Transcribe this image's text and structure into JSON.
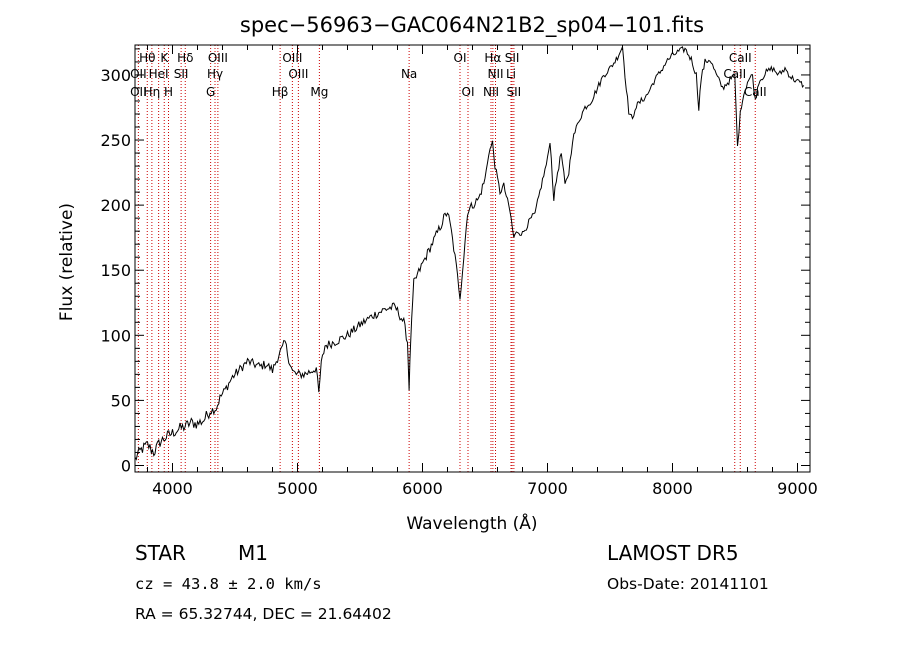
{
  "chart_data": {
    "type": "line",
    "title": "spec−56963−GAC064N21B2_sp04−101.fits",
    "xlabel": "Wavelength (Å)",
    "ylabel": "Flux (relative)",
    "xlim": [
      3700,
      9100
    ],
    "ylim": [
      -5,
      323
    ],
    "xticks": [
      4000,
      5000,
      6000,
      7000,
      8000,
      9000
    ],
    "yticks": [
      0,
      50,
      100,
      150,
      200,
      250,
      300
    ],
    "grid": false,
    "line_color": "#000000",
    "marker_color": "#cc0000",
    "spectral_lines": [
      {
        "label": "Hθ",
        "wl": 3798,
        "row": 1
      },
      {
        "label": "K",
        "wl": 3934,
        "row": 1
      },
      {
        "label": "Hδ",
        "wl": 4102,
        "row": 1
      },
      {
        "label": "OIII",
        "wl": 4363,
        "row": 1
      },
      {
        "label": "OIII",
        "wl": 4959,
        "row": 1
      },
      {
        "label": "OI",
        "wl": 6300,
        "row": 1
      },
      {
        "label": "Hα",
        "wl": 6563,
        "row": 1
      },
      {
        "label": "SII",
        "wl": 6717,
        "row": 1
      },
      {
        "label": "CaII",
        "wl": 8542,
        "row": 1
      },
      {
        "label": "OII",
        "wl": 3727,
        "row": 2
      },
      {
        "label": "HeI",
        "wl": 3889,
        "row": 2
      },
      {
        "label": "SII",
        "wl": 4069,
        "row": 2
      },
      {
        "label": "Hγ",
        "wl": 4340,
        "row": 2
      },
      {
        "label": "OIII",
        "wl": 5007,
        "row": 2
      },
      {
        "label": "Na",
        "wl": 5893,
        "row": 2
      },
      {
        "label": "NII",
        "wl": 6584,
        "row": 2
      },
      {
        "label": "Li",
        "wl": 6708,
        "row": 2
      },
      {
        "label": "CaII",
        "wl": 8498,
        "row": 2
      },
      {
        "label": "OII",
        "wl": 3727,
        "row": 3
      },
      {
        "label": "Hη",
        "wl": 3835,
        "row": 3
      },
      {
        "label": "H",
        "wl": 3968,
        "row": 3
      },
      {
        "label": "G",
        "wl": 4305,
        "row": 3
      },
      {
        "label": "Hβ",
        "wl": 4861,
        "row": 3
      },
      {
        "label": "Mg",
        "wl": 5175,
        "row": 3
      },
      {
        "label": "OI",
        "wl": 6364,
        "row": 3
      },
      {
        "label": "NII",
        "wl": 6548,
        "row": 3
      },
      {
        "label": "SII",
        "wl": 6731,
        "row": 3
      },
      {
        "label": "CaII",
        "wl": 8662,
        "row": 3
      }
    ],
    "spectrum": {
      "x": [
        3700,
        3750,
        3800,
        3850,
        3900,
        3950,
        4000,
        4050,
        4100,
        4150,
        4200,
        4250,
        4300,
        4350,
        4380,
        4420,
        4480,
        4550,
        4600,
        4650,
        4700,
        4750,
        4800,
        4850,
        4880,
        4900,
        4930,
        4960,
        4990,
        5050,
        5100,
        5150,
        5170,
        5190,
        5220,
        5300,
        5400,
        5500,
        5600,
        5700,
        5780,
        5850,
        5880,
        5893,
        5905,
        5930,
        6000,
        6050,
        6100,
        6150,
        6170,
        6200,
        6230,
        6260,
        6300,
        6330,
        6360,
        6400,
        6450,
        6500,
        6530,
        6560,
        6580,
        6620,
        6650,
        6700,
        6730,
        6760,
        6800,
        6840,
        6870,
        6900,
        6950,
        7000,
        7020,
        7050,
        7080,
        7110,
        7140,
        7170,
        7200,
        7250,
        7300,
        7350,
        7400,
        7450,
        7500,
        7550,
        7580,
        7600,
        7620,
        7650,
        7680,
        7700,
        7750,
        7800,
        7850,
        7900,
        7950,
        8000,
        8050,
        8100,
        8150,
        8190,
        8210,
        8230,
        8260,
        8300,
        8350,
        8400,
        8450,
        8498,
        8520,
        8542,
        8560,
        8600,
        8640,
        8662,
        8690,
        8750,
        8800,
        8850,
        8900,
        8950,
        9000,
        9050
      ],
      "y": [
        5,
        12,
        16,
        10,
        18,
        22,
        25,
        28,
        30,
        33,
        32,
        35,
        42,
        44,
        52,
        58,
        68,
        75,
        80,
        78,
        76,
        78,
        73,
        85,
        90,
        95,
        82,
        72,
        70,
        70,
        72,
        75,
        55,
        78,
        92,
        95,
        100,
        108,
        115,
        120,
        122,
        110,
        95,
        60,
        95,
        140,
        155,
        165,
        175,
        185,
        190,
        195,
        180,
        160,
        130,
        160,
        195,
        200,
        205,
        220,
        240,
        248,
        230,
        210,
        215,
        195,
        175,
        180,
        178,
        185,
        190,
        193,
        215,
        235,
        250,
        205,
        225,
        240,
        215,
        225,
        250,
        265,
        275,
        280,
        290,
        300,
        305,
        312,
        318,
        322,
        300,
        272,
        265,
        275,
        280,
        285,
        295,
        302,
        310,
        315,
        318,
        320,
        312,
        300,
        275,
        298,
        310,
        312,
        300,
        290,
        295,
        300,
        245,
        270,
        282,
        295,
        300,
        280,
        295,
        302,
        305,
        300,
        305,
        298,
        295,
        292
      ]
    }
  },
  "info": {
    "object_type": "STAR",
    "subclass": "M1",
    "survey": "LAMOST  DR5",
    "redshift": "cz = 43.8 ± 2.0 km/s",
    "obs_date": "Obs-Date: 20141101",
    "coords": "RA =  65.32744, DEC =  21.64402"
  }
}
